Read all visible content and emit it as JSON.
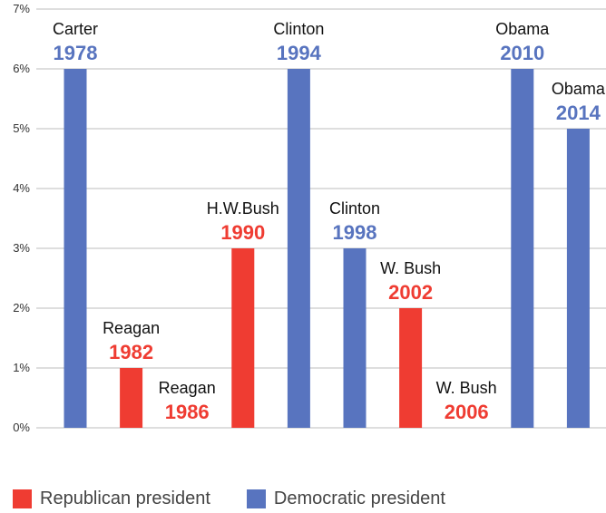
{
  "chart_data": {
    "type": "bar",
    "ylim": [
      0,
      7
    ],
    "yticks": [
      "0%",
      "1%",
      "2%",
      "3%",
      "4%",
      "5%",
      "6%",
      "7%"
    ],
    "grid": true,
    "colors": {
      "republican": "#ef3c32",
      "democratic": "#5874bf"
    },
    "bars": [
      {
        "president": "Carter",
        "year": "1978",
        "value": 6,
        "party": "democratic"
      },
      {
        "president": "Reagan",
        "year": "1982",
        "value": 1,
        "party": "republican"
      },
      {
        "president": "Reagan",
        "year": "1986",
        "value": 0,
        "party": "republican"
      },
      {
        "president": "H.W.Bush",
        "year": "1990",
        "value": 3,
        "party": "republican"
      },
      {
        "president": "Clinton",
        "year": "1994",
        "value": 6,
        "party": "democratic"
      },
      {
        "president": "Clinton",
        "year": "1998",
        "value": 3,
        "party": "democratic"
      },
      {
        "president": "W. Bush",
        "year": "2002",
        "value": 2,
        "party": "republican"
      },
      {
        "president": "W. Bush",
        "year": "2006",
        "value": 0,
        "party": "republican"
      },
      {
        "president": "Obama",
        "year": "2010",
        "value": 6,
        "party": "democratic"
      },
      {
        "president": "Obama",
        "year": "2014",
        "value": 5,
        "party": "democratic"
      }
    ]
  },
  "legend": {
    "republican_label": "Republican president",
    "democratic_label": "Democratic president"
  }
}
